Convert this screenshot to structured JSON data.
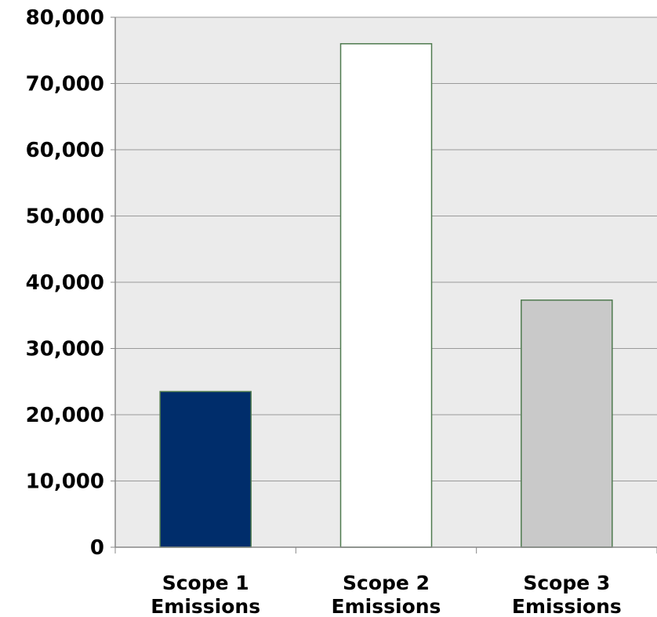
{
  "chart_data": {
    "type": "bar",
    "title": "",
    "xlabel": "",
    "ylabel": "",
    "ylim": [
      0,
      80000
    ],
    "yticks": [
      0,
      10000,
      20000,
      30000,
      40000,
      50000,
      60000,
      70000,
      80000
    ],
    "ytick_labels": [
      "0",
      "10,000",
      "20,000",
      "30,000",
      "40,000",
      "50,000",
      "60,000",
      "70,000",
      "80,000"
    ],
    "categories": [
      [
        "Scope 1",
        "Emissions"
      ],
      [
        "Scope 2",
        "Emissions"
      ],
      [
        "Scope 3",
        "Emissions"
      ]
    ],
    "values": [
      23500,
      76000,
      37300
    ],
    "bar_colors": [
      "#002d6b",
      "#ffffff",
      "#c9c9c9"
    ],
    "bar_edge_color": "#4e7a4e",
    "grid": true,
    "grid_color": "#9a9a9a",
    "plot_background": "#ebebeb",
    "legend": "none"
  }
}
